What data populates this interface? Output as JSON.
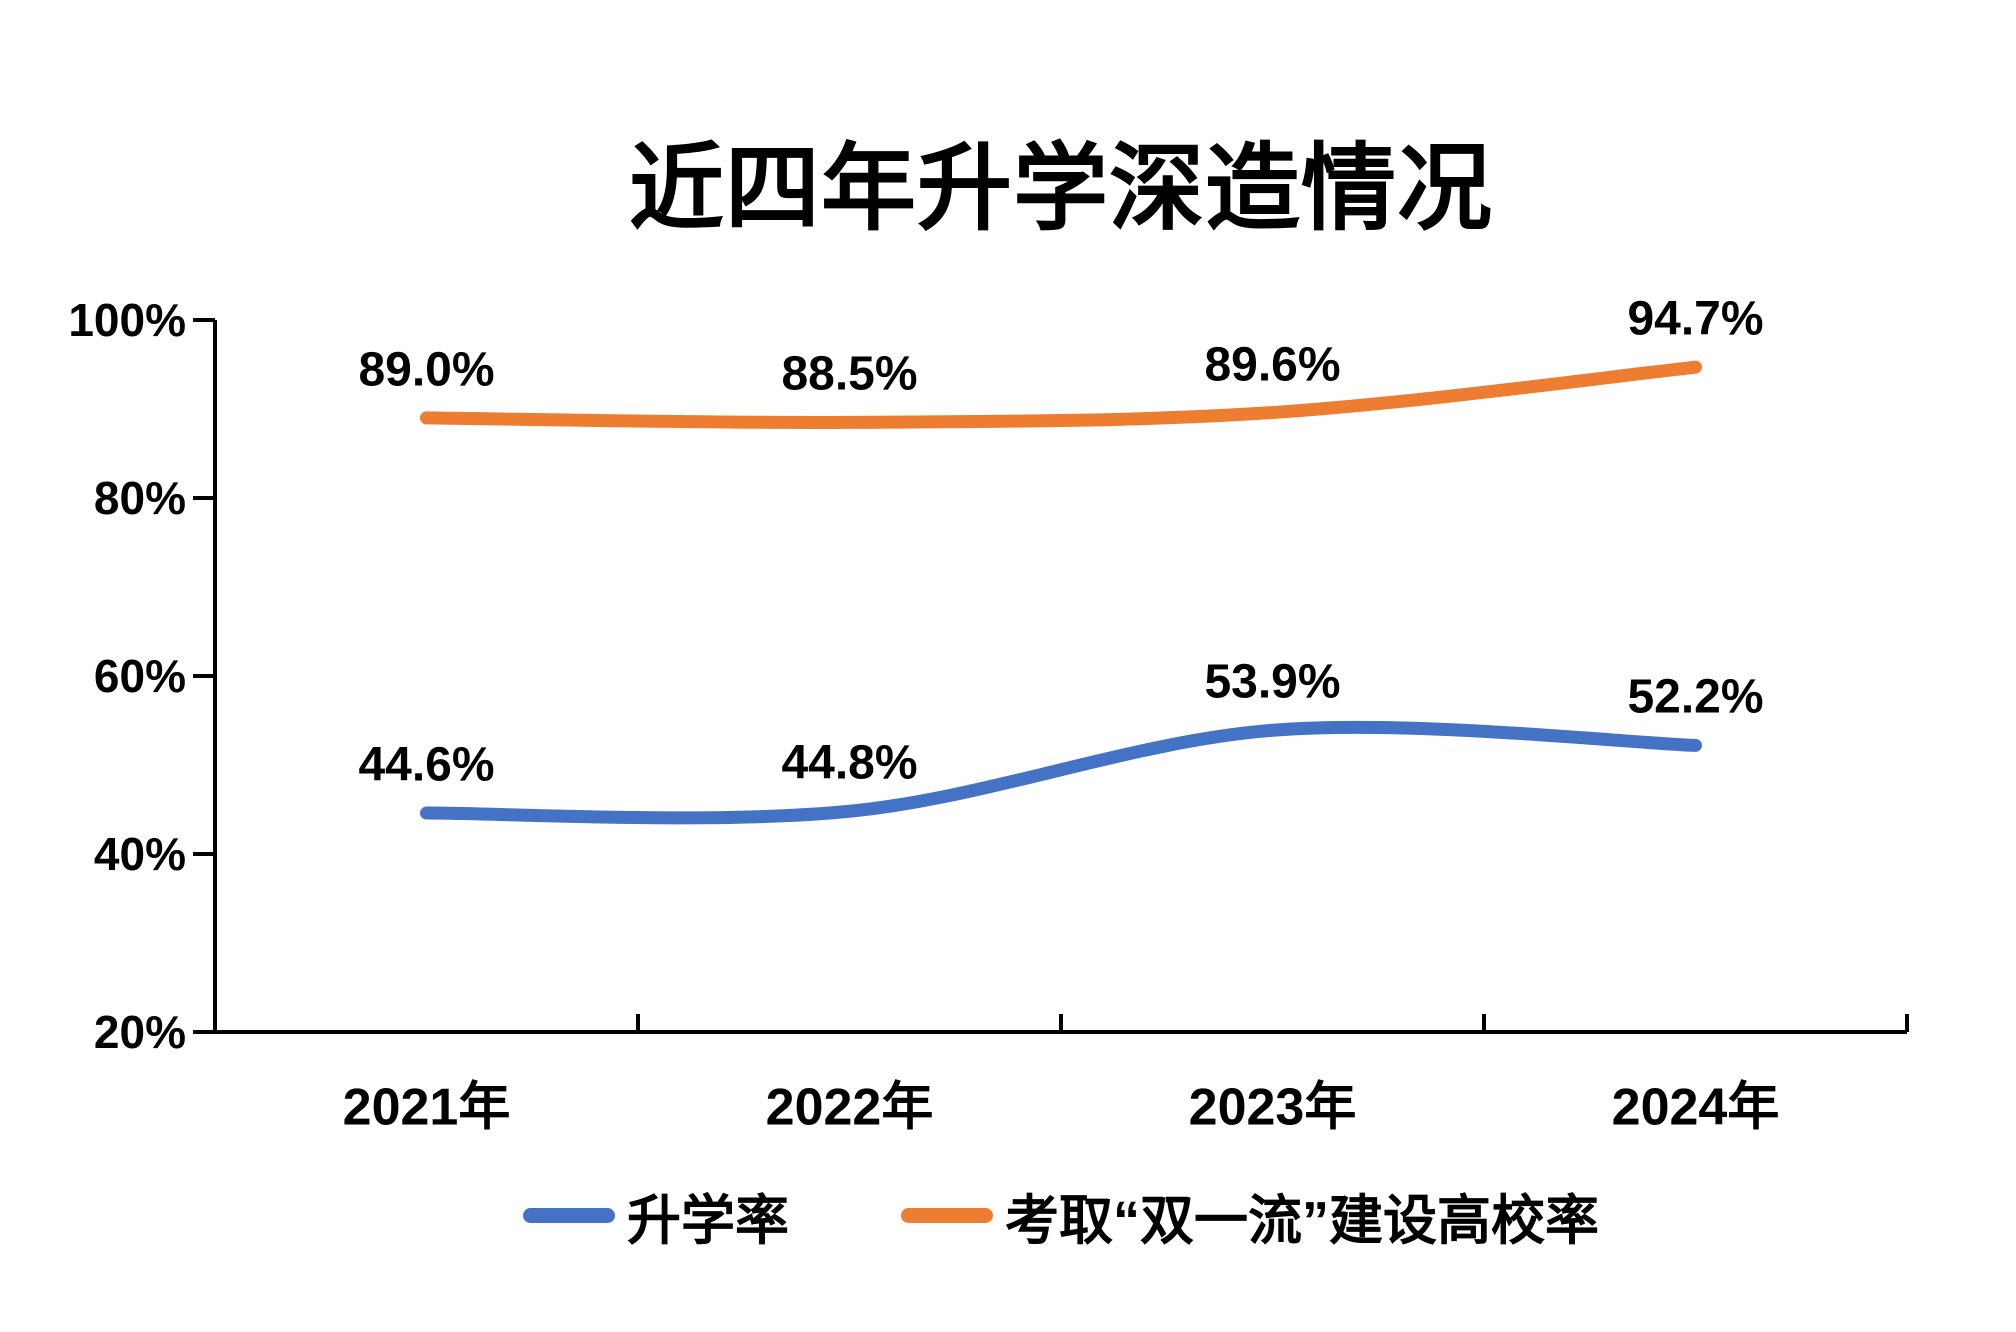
{
  "title": "近四年升学深造情况",
  "chart_data": {
    "type": "line",
    "title": "近四年升学深造情况",
    "categories": [
      "2021年",
      "2022年",
      "2023年",
      "2024年"
    ],
    "series": [
      {
        "name": "升学率",
        "color": "#4472C4",
        "values": [
          44.6,
          44.8,
          53.9,
          52.2
        ],
        "data_labels": [
          "44.6%",
          "44.8%",
          "53.9%",
          "52.2%"
        ]
      },
      {
        "name": "考取“双一流”建设高校率",
        "color": "#ED7D31",
        "values": [
          89.0,
          88.5,
          89.6,
          94.7
        ],
        "data_labels": [
          "89.0%",
          "88.5%",
          "89.6%",
          "94.7%"
        ]
      }
    ],
    "y_axis": {
      "min": 20,
      "max": 100,
      "step": 20,
      "tick_labels": [
        "20%",
        "40%",
        "60%",
        "80%",
        "100%"
      ]
    },
    "xlabel": "",
    "ylabel": "",
    "grid": false,
    "smooth": true,
    "line_width": 13,
    "legend_position": "bottom",
    "axis_color": "#000000",
    "text_color": "#000000",
    "background": "#FFFFFF"
  }
}
